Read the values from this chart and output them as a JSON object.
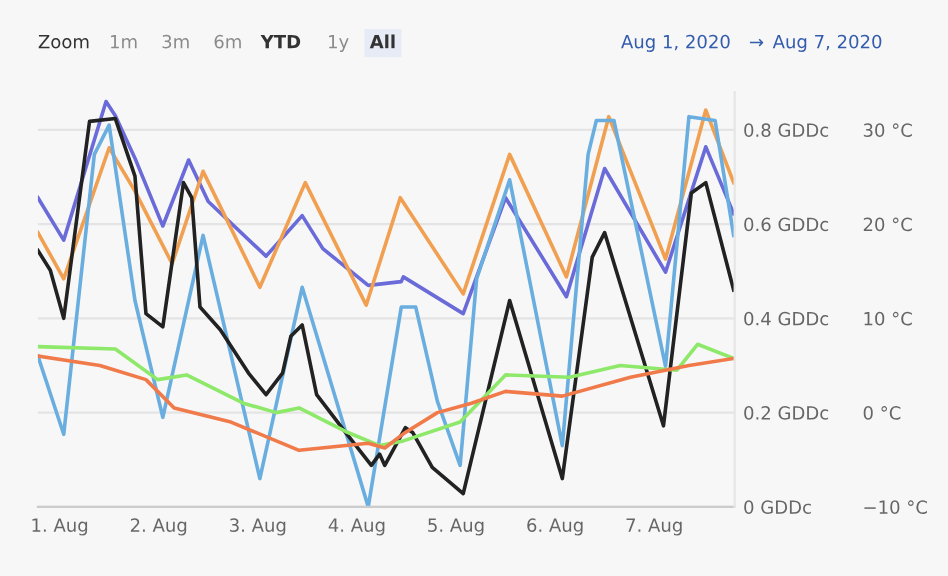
{
  "chart_data": {
    "type": "line",
    "annotations": [
      "Zoom",
      "1m",
      "3m",
      "6m",
      "YTD",
      "1y",
      "All",
      "Aug 1, 2020",
      "→",
      "Aug 7, 2020"
    ],
    "xlim": [
      "2020-07-31T18:45",
      "2020-08-07T19:30"
    ],
    "xticks": [
      {
        "value": "2020-08-01",
        "label": "1. Aug"
      },
      {
        "value": "2020-08-02",
        "label": "2. Aug"
      },
      {
        "value": "2020-08-03",
        "label": "3. Aug"
      },
      {
        "value": "2020-08-04",
        "label": "4. Aug"
      },
      {
        "value": "2020-08-05",
        "label": "5. Aug"
      },
      {
        "value": "2020-08-06",
        "label": "6. Aug"
      },
      {
        "value": "2020-08-07",
        "label": "7. Aug"
      }
    ],
    "ylim": [
      -10,
      34
    ],
    "yticks": [
      {
        "value": -10,
        "label": "−10 °C"
      },
      {
        "value": 0,
        "label": "0 °C"
      },
      {
        "value": 10,
        "label": "10 °C"
      },
      {
        "value": 20,
        "label": "20 °C"
      },
      {
        "value": 30,
        "label": "30 °C"
      }
    ],
    "y2lim": [
      0,
      0.88
    ],
    "y2ticks": [
      {
        "value": 0,
        "label": "0 GDDc"
      },
      {
        "value": 0.2,
        "label": "0.2 GDDc"
      },
      {
        "value": 0.4,
        "label": "0.4 GDDc"
      },
      {
        "value": 0.6,
        "label": "0.6 GDDc"
      },
      {
        "value": 0.8,
        "label": "0.8 GDDc"
      }
    ],
    "grid": "y",
    "legend": false,
    "marker": "none",
    "line_style": "solid",
    "series": [
      {
        "color": "#6a6bd8",
        "x": [
          "2020-07-31T18:45",
          "2020-08-01T01:00",
          "2020-08-01T11:15",
          "2020-08-01T13:30",
          "2020-08-01T18:15",
          "2020-08-02T01:00",
          "2020-08-02T07:15",
          "2020-08-02T12:00",
          "2020-08-03T02:00",
          "2020-08-03T10:45",
          "2020-08-03T15:45",
          "2020-08-04T02:45",
          "2020-08-04T10:45",
          "2020-08-04T11:15",
          "2020-08-05T01:45",
          "2020-08-05T12:00",
          "2020-08-06T02:45",
          "2020-08-06T12:00",
          "2020-08-07T02:45",
          "2020-08-07T12:30",
          "2020-08-07T19:15"
        ],
        "values": [
          22.8,
          18.3,
          33.0,
          31.5,
          27.0,
          19.8,
          26.8,
          22.4,
          16.6,
          20.9,
          17.4,
          13.5,
          13.9,
          14.4,
          10.5,
          22.8,
          12.3,
          25.9,
          14.9,
          28.2,
          21.1
        ]
      },
      {
        "color": "#f0a050",
        "x": [
          "2020-07-31T18:45",
          "2020-08-01T01:00",
          "2020-08-01T12:00",
          "2020-08-01T18:15",
          "2020-08-02T03:15",
          "2020-08-02T10:45",
          "2020-08-03T00:30",
          "2020-08-03T11:30",
          "2020-08-04T02:15",
          "2020-08-04T10:30",
          "2020-08-05T01:45",
          "2020-08-05T13:00",
          "2020-08-06T02:45",
          "2020-08-06T13:00",
          "2020-08-07T02:45",
          "2020-08-07T12:30",
          "2020-08-07T19:15"
        ],
        "values": [
          19.1,
          14.2,
          28.1,
          23.5,
          15.8,
          25.6,
          13.3,
          24.4,
          11.4,
          22.8,
          12.6,
          27.4,
          14.4,
          31.4,
          16.3,
          32.1,
          24.4
        ]
      },
      {
        "color": "#6aaee0",
        "x": [
          "2020-07-31T18:45",
          "2020-08-01T01:00",
          "2020-08-01T08:25",
          "2020-08-01T12:00",
          "2020-08-01T18:15",
          "2020-08-02T01:00",
          "2020-08-02T10:45",
          "2020-08-03T00:30",
          "2020-08-03T10:45",
          "2020-08-04T02:45",
          "2020-08-04T10:45",
          "2020-08-04T14:15",
          "2020-08-04T19:30",
          "2020-08-05T01:00",
          "2020-08-05T05:00",
          "2020-08-05T13:00",
          "2020-08-06T01:45",
          "2020-08-06T08:00",
          "2020-08-06T10:00",
          "2020-08-06T14:15",
          "2020-08-07T02:45",
          "2020-08-07T08:25",
          "2020-08-07T14:45",
          "2020-08-07T19:15"
        ],
        "values": [
          6.0,
          -2.3,
          27.4,
          30.5,
          11.9,
          -0.5,
          18.8,
          -7.0,
          13.3,
          -10.0,
          11.2,
          11.2,
          1.2,
          -5.6,
          14.2,
          24.7,
          -3.5,
          27.4,
          31.0,
          31.0,
          4.9,
          31.4,
          31.0,
          18.8
        ]
      },
      {
        "color": "#222222",
        "x": [
          "2020-07-31T18:45",
          "2020-07-31T21:45",
          "2020-08-01T01:00",
          "2020-08-01T07:15",
          "2020-08-01T13:30",
          "2020-08-01T18:15",
          "2020-08-01T20:55",
          "2020-08-02T01:00",
          "2020-08-02T06:00",
          "2020-08-02T08:00",
          "2020-08-02T10:00",
          "2020-08-02T14:55",
          "2020-08-02T21:45",
          "2020-08-03T02:00",
          "2020-08-03T06:00",
          "2020-08-03T08:00",
          "2020-08-03T10:45",
          "2020-08-03T14:15",
          "2020-08-03T21:15",
          "2020-08-04T03:30",
          "2020-08-04T05:30",
          "2020-08-04T06:45",
          "2020-08-04T11:45",
          "2020-08-04T13:30",
          "2020-08-04T18:15",
          "2020-08-05T01:45",
          "2020-08-05T13:00",
          "2020-08-06T01:45",
          "2020-08-06T09:00",
          "2020-08-06T12:00",
          "2020-08-07T02:15",
          "2020-08-07T09:00",
          "2020-08-07T12:30",
          "2020-08-07T19:15"
        ],
        "values": [
          17.2,
          15.1,
          10.0,
          30.9,
          31.2,
          25.1,
          10.5,
          9.1,
          24.4,
          22.8,
          11.2,
          8.8,
          4.2,
          1.9,
          4.2,
          8.1,
          9.3,
          1.9,
          -2.1,
          -5.6,
          -4.4,
          -5.6,
          -1.6,
          -2.1,
          -5.8,
          -8.6,
          11.9,
          -7.0,
          16.5,
          19.1,
          -1.4,
          23.3,
          24.4,
          13.0
        ]
      },
      {
        "color": "#8ee86a",
        "axis": "y2",
        "x": [
          "2020-07-31T18:45",
          "2020-08-01T13:30",
          "2020-08-01T23:45",
          "2020-08-02T06:45",
          "2020-08-02T20:30",
          "2020-08-03T04:30",
          "2020-08-03T10:00",
          "2020-08-03T21:15",
          "2020-08-04T05:30",
          "2020-08-04T11:15",
          "2020-08-05T01:00",
          "2020-08-05T12:00",
          "2020-08-06T03:30",
          "2020-08-06T15:45",
          "2020-08-07T05:30",
          "2020-08-07T10:30",
          "2020-08-07T19:15"
        ],
        "values": [
          0.34,
          0.335,
          0.27,
          0.28,
          0.22,
          0.2,
          0.21,
          0.16,
          0.13,
          0.14,
          0.18,
          0.28,
          0.275,
          0.3,
          0.29,
          0.345,
          0.315
        ]
      },
      {
        "color": "#f07a4a",
        "axis": "y2",
        "x": [
          "2020-07-31T18:45",
          "2020-08-01T09:45",
          "2020-08-01T20:55",
          "2020-08-02T03:45",
          "2020-08-02T17:30",
          "2020-08-03T10:00",
          "2020-08-04T02:45",
          "2020-08-04T06:45",
          "2020-08-04T11:15",
          "2020-08-04T19:30",
          "2020-08-05T03:45",
          "2020-08-05T12:00",
          "2020-08-06T01:45",
          "2020-08-06T18:15",
          "2020-08-07T08:25",
          "2020-08-07T19:15"
        ],
        "values": [
          0.32,
          0.3,
          0.27,
          0.21,
          0.18,
          0.12,
          0.135,
          0.125,
          0.155,
          0.2,
          0.22,
          0.245,
          0.235,
          0.275,
          0.3,
          0.315
        ]
      }
    ]
  }
}
